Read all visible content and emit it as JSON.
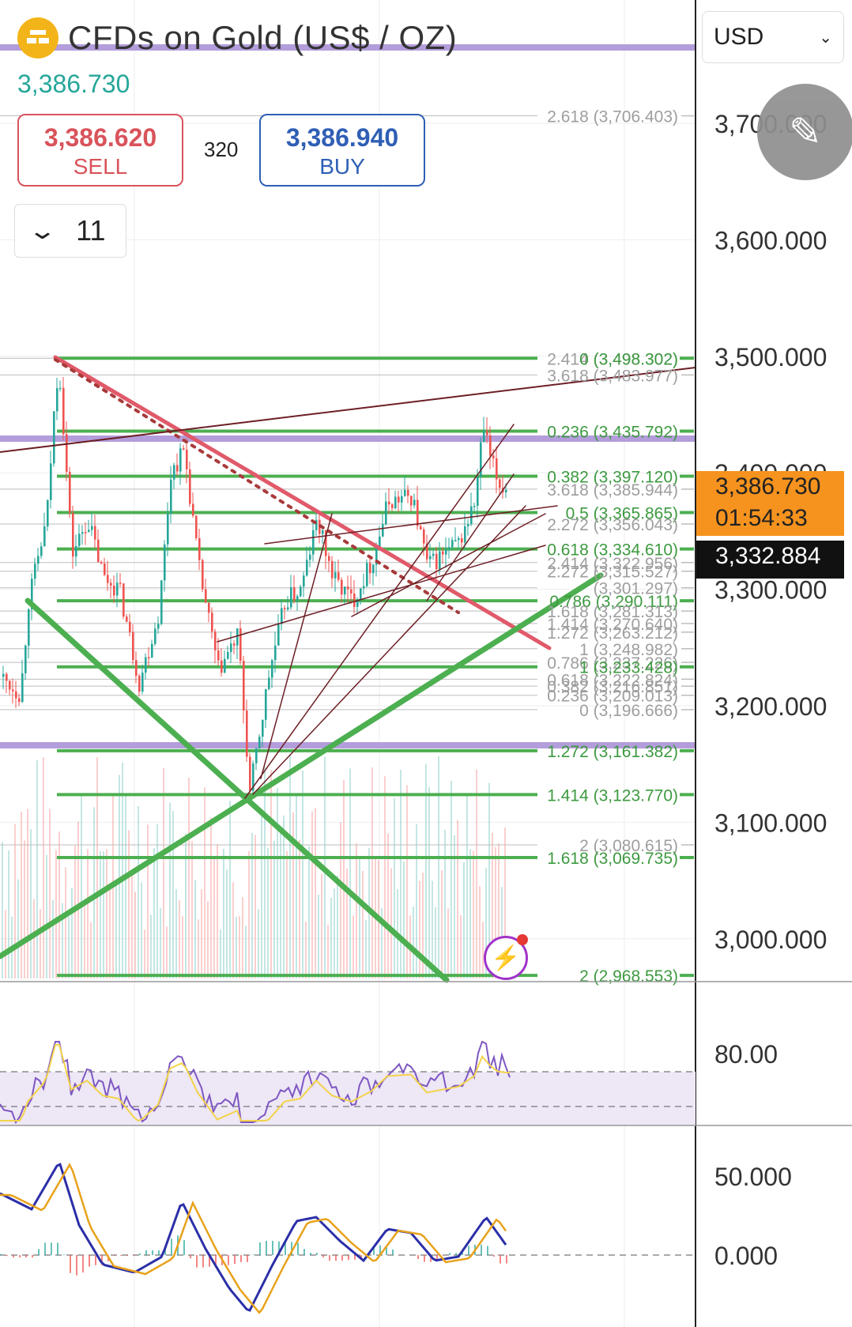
{
  "header": {
    "title": "CFDs on Gold (US$ / OZ)",
    "last_price": "3,386.730",
    "sell_price": "3,386.620",
    "sell_label": "SELL",
    "buy_price": "3,386.940",
    "buy_label": "BUY",
    "spread": "320",
    "interval": "11",
    "currency": "USD"
  },
  "colors": {
    "up": "#26a69a",
    "down": "#ef5350",
    "fib": "#4caf50",
    "trend_red": "#e05a6a",
    "trend_brown": "#6d1f25",
    "purple": "#b39ddb",
    "tag_orange": "#f6931e"
  },
  "icons": {
    "logo": "gold-bars-icon",
    "dropdown": "chevron-down-icon",
    "draw": "pencil-icon",
    "alert": "lightning-icon"
  },
  "price_axis": {
    "ticks": [
      "3,700.000",
      "3,600.000",
      "3,500.000",
      "3,400.000",
      "3,300.000",
      "3,200.000",
      "3,100.000",
      "3,000.000"
    ]
  },
  "price_tags": {
    "last": "3,386.730",
    "countdown": "01:54:33",
    "line": "3,332.884"
  },
  "fib_labels": [
    {
      "text": "2.618 (3,706.403)",
      "price": 3706.403,
      "style": "grey"
    },
    {
      "text": "2.414 (3,498.302)",
      "price": 3498.302,
      "style": "grey"
    },
    {
      "text": "0 (3,498.302)",
      "price": 3498.302,
      "style": "green"
    },
    {
      "text": "3.618 (3,483.977)",
      "price": 3483.977,
      "style": "grey"
    },
    {
      "text": "0.236 (3,435.792)",
      "price": 3435.792,
      "style": "green"
    },
    {
      "text": "0.382 (3,397.120)",
      "price": 3397.12,
      "style": "green"
    },
    {
      "text": "3.618 (3,385.944)",
      "price": 3385.944,
      "style": "grey"
    },
    {
      "text": "0.5 (3,365.865)",
      "price": 3365.865,
      "style": "green"
    },
    {
      "text": "2.272 (3,356.043)",
      "price": 3356.043,
      "style": "grey"
    },
    {
      "text": "0.618 (3,334.610)",
      "price": 3334.61,
      "style": "green"
    },
    {
      "text": "2.414 (3,322.956)",
      "price": 3322.956,
      "style": "grey"
    },
    {
      "text": "2.272 (3,315.527)",
      "price": 3315.527,
      "style": "grey"
    },
    {
      "text": "(3,301.297)",
      "price": 3301.297,
      "style": "grey"
    },
    {
      "text": "0.786 (3,290.111)",
      "price": 3290.111,
      "style": "green"
    },
    {
      "text": "1.618 (3,281.313)",
      "price": 3281.313,
      "style": "grey"
    },
    {
      "text": "1.414 (3,270.640)",
      "price": 3270.64,
      "style": "grey"
    },
    {
      "text": "1.272 (3,263.212)",
      "price": 3263.212,
      "style": "grey"
    },
    {
      "text": "1 (3,248.982)",
      "price": 3248.982,
      "style": "grey"
    },
    {
      "text": "0.786 (3,237.226)",
      "price": 3237.226,
      "style": "grey"
    },
    {
      "text": "1 (3,233.428)",
      "price": 3233.428,
      "style": "green"
    },
    {
      "text": "0.618 (3,222.824)",
      "price": 3222.824,
      "style": "grey"
    },
    {
      "text": "0.382 (3,216.851)",
      "price": 3216.851,
      "style": "grey"
    },
    {
      "text": "0.236 (3,209.013)",
      "price": 3209.013,
      "style": "grey"
    },
    {
      "text": "0 (3,196.666)",
      "price": 3196.666,
      "style": "grey"
    },
    {
      "text": "1.272 (3,161.382)",
      "price": 3161.382,
      "style": "green"
    },
    {
      "text": "1.414 (3,123.770)",
      "price": 3123.77,
      "style": "green"
    },
    {
      "text": "2 (3,080.615)",
      "price": 3080.615,
      "style": "grey"
    },
    {
      "text": "1.618 (3,069.735)",
      "price": 3069.735,
      "style": "green"
    },
    {
      "text": "2 (2,968.553)",
      "price": 2968.553,
      "style": "green"
    }
  ],
  "rsi": {
    "tick": "80.00"
  },
  "macd": {
    "ticks": [
      "50.000",
      "0.000"
    ]
  }
}
